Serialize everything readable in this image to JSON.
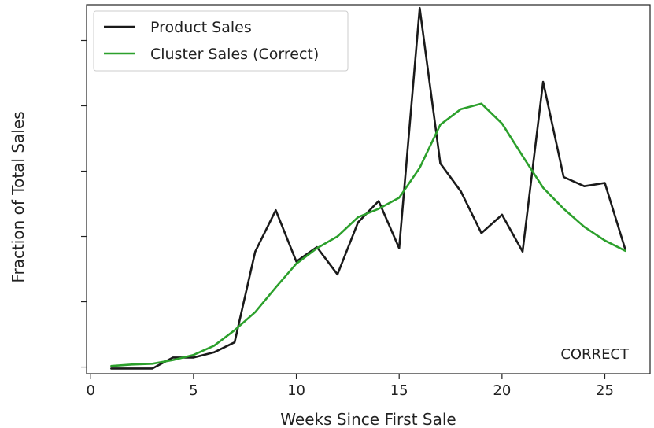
{
  "chart_data": {
    "type": "line",
    "title": "",
    "xlabel": "Weeks Since First Sale",
    "ylabel": "Fraction of Total Sales",
    "xlim": [
      -0.2,
      27.2
    ],
    "ylim": [
      0,
      1
    ],
    "xticks": [
      0,
      5,
      10,
      15,
      20,
      25
    ],
    "yticks": [
      0.018,
      0.195,
      0.372,
      0.549,
      0.726,
      0.903
    ],
    "y_tick_labels_shown": false,
    "grid": false,
    "legend_position": "top-left",
    "annotation": "CORRECT",
    "series": [
      {
        "name": "Product Sales",
        "color": "#1a1a1a",
        "x": [
          1,
          2,
          3,
          4,
          5,
          6,
          7,
          8,
          9,
          10,
          11,
          12,
          13,
          14,
          15,
          16,
          17,
          18,
          19,
          20,
          21,
          22,
          23,
          24,
          25,
          26
        ],
        "y": [
          0.014,
          0.014,
          0.014,
          0.044,
          0.044,
          0.058,
          0.085,
          0.331,
          0.443,
          0.304,
          0.343,
          0.269,
          0.41,
          0.468,
          0.34,
          0.991,
          0.57,
          0.494,
          0.381,
          0.431,
          0.331,
          0.791,
          0.533,
          0.508,
          0.517,
          0.336
        ]
      },
      {
        "name": "Cluster Sales (Correct)",
        "color": "#2ca02c",
        "x": [
          1,
          2,
          3,
          4,
          5,
          6,
          7,
          8,
          9,
          10,
          11,
          12,
          13,
          14,
          15,
          16,
          17,
          18,
          19,
          20,
          21,
          22,
          23,
          24,
          25,
          26
        ],
        "y": [
          0.021,
          0.025,
          0.027,
          0.037,
          0.051,
          0.076,
          0.118,
          0.167,
          0.234,
          0.298,
          0.34,
          0.372,
          0.424,
          0.447,
          0.477,
          0.558,
          0.675,
          0.717,
          0.732,
          0.678,
          0.59,
          0.504,
          0.447,
          0.398,
          0.361,
          0.333
        ]
      }
    ]
  }
}
